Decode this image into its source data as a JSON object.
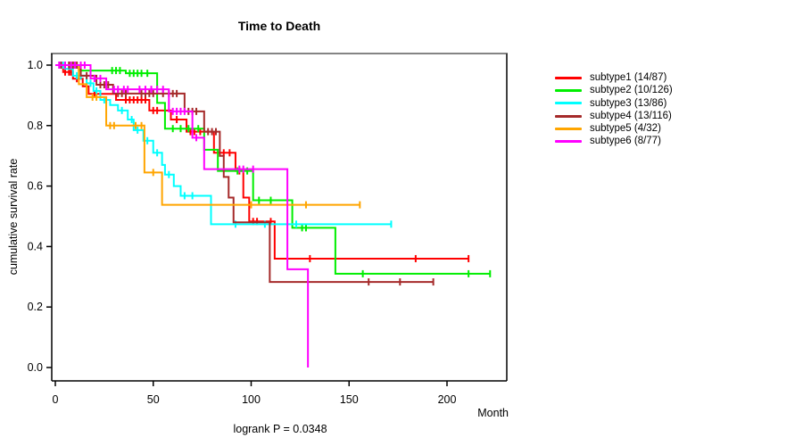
{
  "title": "Time to Death",
  "footnote": "logrank P = 0.0348",
  "chart_data": {
    "type": "line",
    "subtype": "kaplan-meier-step-curves",
    "title": "Time to Death",
    "xlabel": "Month",
    "ylabel": "cumulative survival rate",
    "annotation": "logrank P = 0.0348",
    "xlim": [
      0,
      230
    ],
    "ylim": [
      0,
      1.04
    ],
    "x_ticks": [
      0,
      50,
      100,
      150,
      200
    ],
    "y_ticks": [
      0,
      0.2,
      0.4,
      0.6,
      0.8,
      1.0
    ],
    "grid": false,
    "legend_position": "right-outside",
    "frame_colors": {
      "top": "#848484",
      "right": "#3f3f3f",
      "left": "#000000",
      "bottom": "#000000"
    },
    "series": [
      {
        "name": "subtype1",
        "label": "subtype1 (14/87)",
        "color": "#ff0000",
        "events": 14,
        "n": 87,
        "steps": [
          [
            0,
            1
          ],
          [
            4,
            0.977
          ],
          [
            9,
            0.955
          ],
          [
            14,
            0.93
          ],
          [
            17,
            0.905
          ],
          [
            31,
            0.885
          ],
          [
            48,
            0.85
          ],
          [
            59,
            0.82
          ],
          [
            67,
            0.78
          ],
          [
            81,
            0.71
          ],
          [
            92,
            0.65
          ],
          [
            96,
            0.562
          ],
          [
            99,
            0.483
          ],
          [
            112,
            0.36
          ]
        ],
        "end_month": 211,
        "censor_months": [
          2,
          5,
          7,
          8,
          11,
          20,
          23,
          36,
          38,
          40,
          42,
          44,
          46,
          50,
          52,
          62,
          69,
          71,
          74,
          86,
          89,
          94,
          101,
          103,
          110,
          130,
          184,
          211
        ]
      },
      {
        "name": "subtype2",
        "label": "subtype2 (10/126)",
        "color": "#00ee00",
        "events": 10,
        "n": 126,
        "steps": [
          [
            0,
            1
          ],
          [
            12,
            0.982
          ],
          [
            36,
            0.973
          ],
          [
            52,
            0.875
          ],
          [
            56,
            0.79
          ],
          [
            76,
            0.72
          ],
          [
            83,
            0.65
          ],
          [
            101,
            0.553
          ],
          [
            121,
            0.462
          ],
          [
            143,
            0.31
          ]
        ],
        "end_month": 222,
        "censor_months": [
          5,
          7,
          9,
          29,
          31,
          33,
          38,
          40,
          42,
          44,
          47,
          60,
          64,
          68,
          73,
          93,
          98,
          104,
          110,
          126,
          128,
          157,
          211,
          222
        ]
      },
      {
        "name": "subtype3",
        "label": "subtype3 (13/86)",
        "color": "#00ffff",
        "events": 13,
        "n": 86,
        "steps": [
          [
            0,
            1
          ],
          [
            5,
            0.988
          ],
          [
            9,
            0.965
          ],
          [
            16,
            0.94
          ],
          [
            19.5,
            0.915
          ],
          [
            23,
            0.885
          ],
          [
            28,
            0.868
          ],
          [
            32,
            0.85
          ],
          [
            37,
            0.82
          ],
          [
            40,
            0.785
          ],
          [
            45,
            0.75
          ],
          [
            50,
            0.71
          ],
          [
            54.5,
            0.67
          ],
          [
            56,
            0.638
          ],
          [
            60.5,
            0.6
          ],
          [
            64,
            0.568
          ],
          [
            79.5,
            0.474
          ]
        ],
        "end_month": 171.5,
        "censor_months": [
          2,
          4,
          11,
          13,
          18,
          21,
          25,
          26,
          34,
          39,
          42,
          47,
          52,
          58,
          66,
          70,
          92,
          107,
          123,
          171.5
        ]
      },
      {
        "name": "subtype4",
        "label": "subtype4 (13/116)",
        "color": "#a52a2a",
        "events": 13,
        "n": 116,
        "steps": [
          [
            0,
            1
          ],
          [
            13,
            0.965
          ],
          [
            21,
            0.935
          ],
          [
            29.5,
            0.906
          ],
          [
            66,
            0.847
          ],
          [
            76,
            0.78
          ],
          [
            84,
            0.7
          ],
          [
            86,
            0.63
          ],
          [
            88.5,
            0.562
          ],
          [
            91,
            0.48
          ],
          [
            109.5,
            0.283
          ]
        ],
        "end_month": 193,
        "censor_months": [
          3,
          5,
          7,
          9,
          11,
          16,
          18,
          23,
          25,
          27,
          32,
          34,
          36,
          44,
          46,
          48,
          50,
          55,
          58,
          60,
          62,
          68,
          70,
          72,
          78,
          80,
          82,
          160,
          176,
          193
        ]
      },
      {
        "name": "subtype5",
        "label": "subtype5 (4/32)",
        "color": "#ffa500",
        "events": 4,
        "n": 32,
        "steps": [
          [
            0,
            1
          ],
          [
            12,
            0.937
          ],
          [
            16,
            0.894
          ],
          [
            26,
            0.8
          ],
          [
            45.5,
            0.645
          ],
          [
            54.5,
            0.538
          ]
        ],
        "end_month": 155.5,
        "censor_months": [
          8,
          10,
          19,
          21,
          28,
          30,
          41,
          44,
          50,
          100,
          128,
          155.5
        ]
      },
      {
        "name": "subtype6",
        "label": "subtype6 (8/77)",
        "color": "#ff00ff",
        "events": 8,
        "n": 77,
        "steps": [
          [
            0,
            1
          ],
          [
            18,
            0.956
          ],
          [
            26,
            0.92
          ],
          [
            58,
            0.847
          ],
          [
            70,
            0.76
          ],
          [
            76,
            0.656
          ],
          [
            118.5,
            0.325
          ],
          [
            129,
            0
          ]
        ],
        "end_month": 129,
        "censor_months": [
          2,
          5,
          8,
          10,
          13,
          15,
          20,
          23,
          30,
          32,
          35,
          37,
          43,
          46,
          49,
          52,
          55,
          60,
          62,
          64,
          66,
          72,
          94,
          96,
          101
        ]
      }
    ]
  }
}
